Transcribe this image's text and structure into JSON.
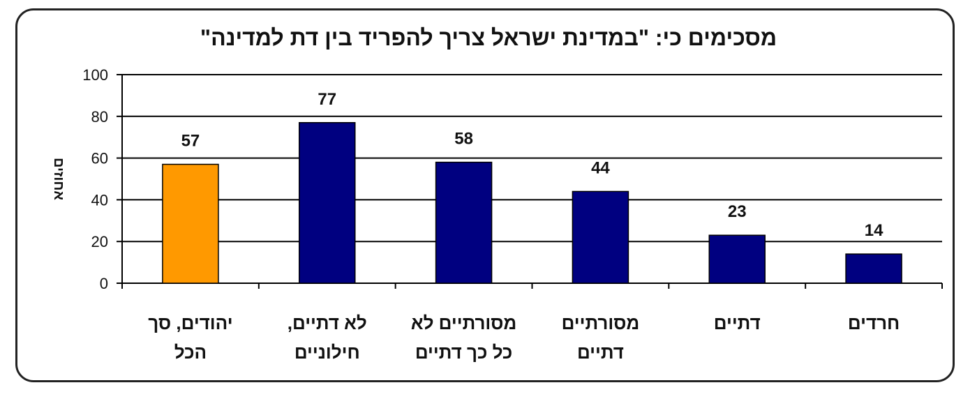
{
  "chart_data": {
    "type": "bar",
    "title": "מסכימים כי: \"במדינת ישראל צריך להפריד בין דת למדינה\"",
    "xlabel": "",
    "ylabel": "אחוזים",
    "ylim": [
      0,
      100
    ],
    "yticks": [
      0,
      20,
      40,
      60,
      80,
      100
    ],
    "grid": true,
    "legend": "none",
    "categories": [
      [
        "יהודים, סך",
        "הכל"
      ],
      [
        "לא דתיים,",
        "חילוניים"
      ],
      [
        "מסורתיים לא",
        "כל כך דתיים"
      ],
      [
        "מסורתיים",
        "דתיים"
      ],
      [
        "דתיים"
      ],
      [
        "חרדים"
      ]
    ],
    "values": [
      57,
      77,
      58,
      44,
      23,
      14
    ],
    "colors": [
      "#FF9900",
      "#000080",
      "#000080",
      "#000080",
      "#000080",
      "#000080"
    ]
  }
}
